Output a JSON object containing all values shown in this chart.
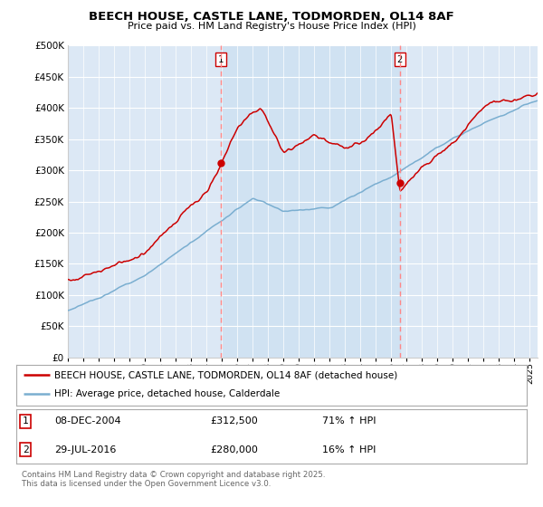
{
  "title": "BEECH HOUSE, CASTLE LANE, TODMORDEN, OL14 8AF",
  "subtitle": "Price paid vs. HM Land Registry's House Price Index (HPI)",
  "red_label": "BEECH HOUSE, CASTLE LANE, TODMORDEN, OL14 8AF (detached house)",
  "blue_label": "HPI: Average price, detached house, Calderdale",
  "footer": "Contains HM Land Registry data © Crown copyright and database right 2025.\nThis data is licensed under the Open Government Licence v3.0.",
  "sale1_label": "1",
  "sale1_date": "08-DEC-2004",
  "sale1_price": "£312,500",
  "sale1_hpi": "71% ↑ HPI",
  "sale1_x": 2004.93,
  "sale1_y": 312500,
  "sale2_label": "2",
  "sale2_date": "29-JUL-2016",
  "sale2_price": "£280,000",
  "sale2_hpi": "16% ↑ HPI",
  "sale2_x": 2016.56,
  "sale2_y": 280000,
  "ylim": [
    0,
    500000
  ],
  "yticks": [
    0,
    50000,
    100000,
    150000,
    200000,
    250000,
    300000,
    350000,
    400000,
    450000,
    500000
  ],
  "xlim_start": 1995,
  "xlim_end": 2025.5,
  "background_color": "#dce8f5",
  "fig_background": "#ffffff",
  "red_color": "#cc0000",
  "blue_color": "#7aaed0",
  "vline_color": "#ff8888",
  "shade_color": "#c8dff0"
}
